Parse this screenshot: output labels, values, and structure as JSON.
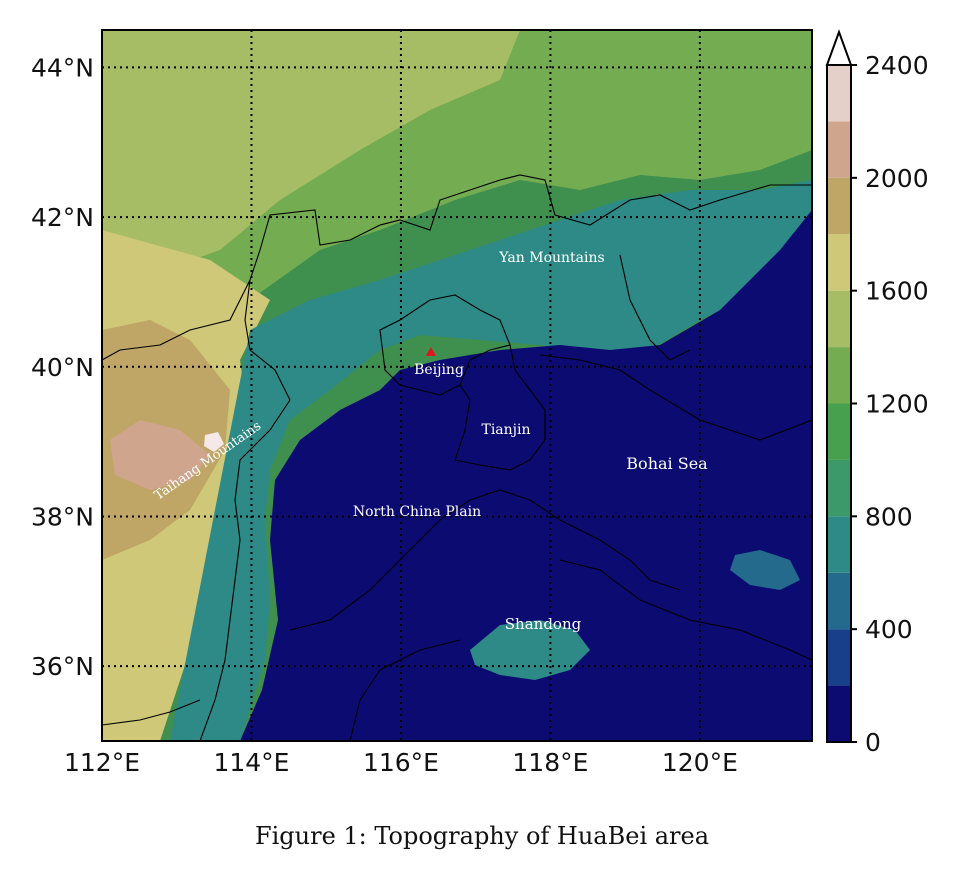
{
  "caption": "Figure  1: Topography of HuaBei area",
  "map": {
    "extent": {
      "lon": [
        112,
        121.5
      ],
      "lat": [
        35,
        44.5
      ]
    },
    "lon_ticks": [
      {
        "value": 112,
        "label": "112°E"
      },
      {
        "value": 114,
        "label": "114°E"
      },
      {
        "value": 116,
        "label": "116°E"
      },
      {
        "value": 118,
        "label": "118°E"
      },
      {
        "value": 120,
        "label": "120°E"
      }
    ],
    "lat_ticks": [
      {
        "value": 36,
        "label": "36°N"
      },
      {
        "value": 38,
        "label": "38°N"
      },
      {
        "value": 40,
        "label": "40°N"
      },
      {
        "value": 42,
        "label": "42°N"
      },
      {
        "value": 44,
        "label": "44°N"
      }
    ],
    "gridlines": "dotted",
    "labels": {
      "yan": "Yan Mountains",
      "beijing": "Beijing",
      "tianjin": "Tianjin",
      "bohai": "Bohai Sea",
      "plain": "North China Plain",
      "taihang": "Taihang Mountains",
      "shandong": "Shandong"
    },
    "marker": {
      "name": "Beijing",
      "lon": 116.4,
      "lat": 40.2,
      "color": "#e0161d",
      "shape": "triangle"
    }
  },
  "colorbar": {
    "min": 0,
    "max": 2400,
    "extend": "max",
    "tick_labels": [
      "0",
      "400",
      "800",
      "1200",
      "1600",
      "2000",
      "2400"
    ],
    "colors": [
      "#0b0b72",
      "#183f8a",
      "#236a8c",
      "#2e8a86",
      "#3c9a6a",
      "#46a04e",
      "#74ac52",
      "#a7bd65",
      "#cec878",
      "#bfa566",
      "#cfa58e",
      "#e5cfc9",
      "#f4e8e8"
    ]
  }
}
